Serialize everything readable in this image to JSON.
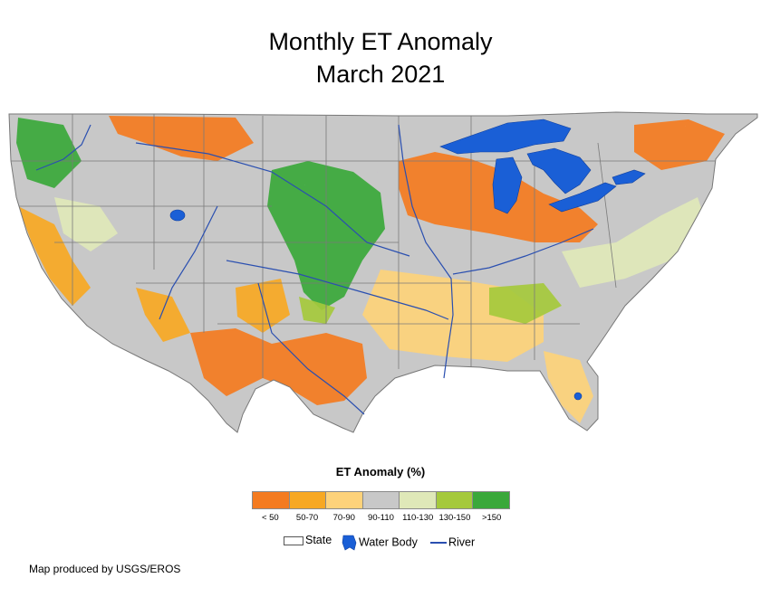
{
  "title_line1": "Monthly ET Anomaly",
  "title_line2": "March 2021",
  "legend": {
    "title": "ET Anomaly (%)",
    "classes": [
      {
        "label": "< 50",
        "color": "#f47b20"
      },
      {
        "label": "50-70",
        "color": "#f7a823"
      },
      {
        "label": "70-90",
        "color": "#fdd27a"
      },
      {
        "label": "90-110",
        "color": "#c8c8c8"
      },
      {
        "label": "110-130",
        "color": "#dfe8b8"
      },
      {
        "label": "130-150",
        "color": "#a5c93c"
      },
      {
        "label": ">150",
        "color": "#3aa83a"
      }
    ]
  },
  "key": {
    "state_label": "State",
    "water_label": "Water Body",
    "river_label": "River",
    "water_color": "#1a5fd6",
    "river_color": "#2a4fb0"
  },
  "credit": "Map produced by USGS/EROS"
}
